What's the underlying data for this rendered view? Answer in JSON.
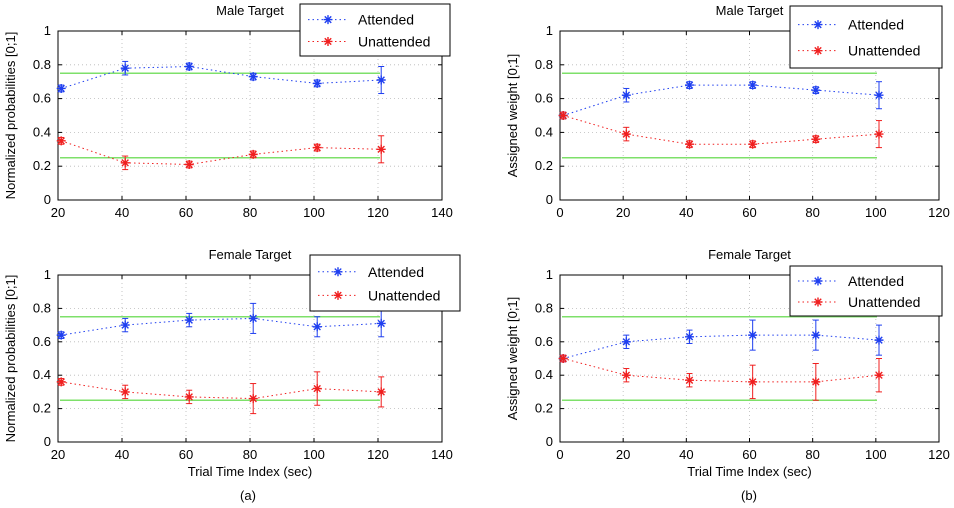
{
  "figure": {
    "caption_left": "(a)",
    "caption_right": "(b)"
  },
  "colors": {
    "attended": "#1f3ff0",
    "unattended": "#f01f1f",
    "reference": "#7ee06a",
    "grid": "#b8b8b8",
    "axis": "#000000"
  },
  "chart_data": [
    {
      "type": "line",
      "title": "Male Target",
      "xlabel": "",
      "ylabel": "Normalized probabilities [0;1]",
      "xlim": [
        20,
        140
      ],
      "ylim": [
        0,
        1
      ],
      "xticks": [
        20,
        40,
        60,
        80,
        100,
        120,
        140
      ],
      "yticks": [
        0,
        0.2,
        0.4,
        0.6,
        0.8,
        1
      ],
      "grid": true,
      "legend_position": "top-right",
      "reference_lines": [
        0.75,
        0.25
      ],
      "series": [
        {
          "name": "Attended",
          "x": [
            21,
            41,
            61,
            81,
            101,
            121
          ],
          "y": [
            0.66,
            0.78,
            0.79,
            0.73,
            0.69,
            0.71
          ],
          "err": [
            0.02,
            0.04,
            0.02,
            0.02,
            0.02,
            0.08
          ]
        },
        {
          "name": "Unattended",
          "x": [
            21,
            41,
            61,
            81,
            101,
            121
          ],
          "y": [
            0.35,
            0.22,
            0.21,
            0.27,
            0.31,
            0.3
          ],
          "err": [
            0.02,
            0.04,
            0.02,
            0.02,
            0.02,
            0.08
          ]
        }
      ]
    },
    {
      "type": "line",
      "title": "Male Target",
      "xlabel": "",
      "ylabel": "Assigned weight [0;1]",
      "xlim": [
        0,
        120
      ],
      "ylim": [
        0,
        1
      ],
      "xticks": [
        0,
        20,
        40,
        60,
        80,
        100,
        120
      ],
      "yticks": [
        0,
        0.2,
        0.4,
        0.6,
        0.8,
        1
      ],
      "grid": true,
      "legend_position": "top-right",
      "reference_lines": [
        0.75,
        0.25
      ],
      "series": [
        {
          "name": "Attended",
          "x": [
            1,
            21,
            41,
            61,
            81,
            101
          ],
          "y": [
            0.5,
            0.62,
            0.68,
            0.68,
            0.65,
            0.62
          ],
          "err": [
            0.02,
            0.04,
            0.02,
            0.02,
            0.02,
            0.08
          ]
        },
        {
          "name": "Unattended",
          "x": [
            1,
            21,
            41,
            61,
            81,
            101
          ],
          "y": [
            0.5,
            0.39,
            0.33,
            0.33,
            0.36,
            0.39
          ],
          "err": [
            0.02,
            0.04,
            0.02,
            0.02,
            0.02,
            0.08
          ]
        }
      ]
    },
    {
      "type": "line",
      "title": "Female Target",
      "xlabel": "Trial Time Index (sec)",
      "ylabel": "Normalized probabilities [0;1]",
      "xlim": [
        20,
        140
      ],
      "ylim": [
        0,
        1
      ],
      "xticks": [
        20,
        40,
        60,
        80,
        100,
        120,
        140
      ],
      "yticks": [
        0,
        0.2,
        0.4,
        0.6,
        0.8,
        1
      ],
      "grid": true,
      "legend_position": "top-right",
      "reference_lines": [
        0.75,
        0.25
      ],
      "series": [
        {
          "name": "Attended",
          "x": [
            21,
            41,
            61,
            81,
            101,
            121
          ],
          "y": [
            0.64,
            0.7,
            0.73,
            0.74,
            0.69,
            0.71
          ],
          "err": [
            0.02,
            0.04,
            0.04,
            0.09,
            0.06,
            0.08
          ]
        },
        {
          "name": "Unattended",
          "x": [
            21,
            41,
            61,
            81,
            101,
            121
          ],
          "y": [
            0.36,
            0.3,
            0.27,
            0.26,
            0.32,
            0.3
          ],
          "err": [
            0.02,
            0.04,
            0.04,
            0.09,
            0.1,
            0.09
          ]
        }
      ]
    },
    {
      "type": "line",
      "title": "Female Target",
      "xlabel": "Trial Time Index (sec)",
      "ylabel": "Assigned weight [0;1]",
      "xlim": [
        0,
        120
      ],
      "ylim": [
        0,
        1
      ],
      "xticks": [
        0,
        20,
        40,
        60,
        80,
        100,
        120
      ],
      "yticks": [
        0,
        0.2,
        0.4,
        0.6,
        0.8,
        1
      ],
      "grid": true,
      "legend_position": "top-right",
      "reference_lines": [
        0.75,
        0.25
      ],
      "series": [
        {
          "name": "Attended",
          "x": [
            1,
            21,
            41,
            61,
            81,
            101
          ],
          "y": [
            0.5,
            0.6,
            0.63,
            0.64,
            0.64,
            0.61
          ],
          "err": [
            0.02,
            0.04,
            0.04,
            0.09,
            0.09,
            0.09
          ]
        },
        {
          "name": "Unattended",
          "x": [
            1,
            21,
            41,
            61,
            81,
            101
          ],
          "y": [
            0.5,
            0.4,
            0.37,
            0.36,
            0.36,
            0.4
          ],
          "err": [
            0.02,
            0.04,
            0.04,
            0.1,
            0.11,
            0.1
          ]
        }
      ]
    }
  ]
}
